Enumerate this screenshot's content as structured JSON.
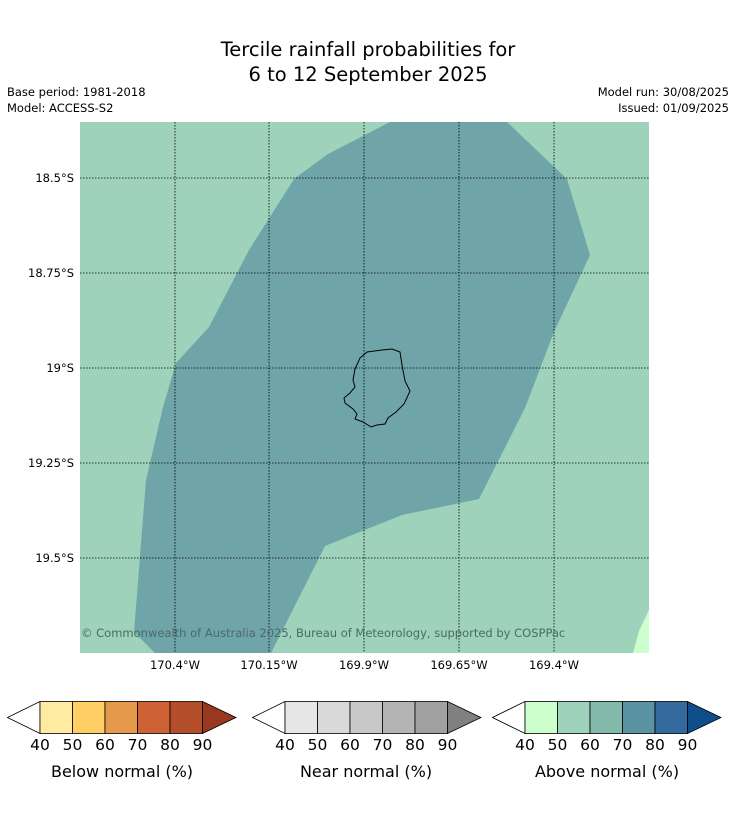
{
  "header": {
    "title_line1": "Tercile rainfall probabilities for",
    "title_line2": "6 to 12 September 2025",
    "base_period": "Base period: 1981-2018",
    "model": "Model: ACCESS-S2",
    "model_run": "Model run: 30/08/2025",
    "issued": "Issued: 01/09/2025"
  },
  "map": {
    "lat_labels": [
      "18.5°S",
      "18.75°S",
      "19°S",
      "19.25°S",
      "19.5°S"
    ],
    "lon_labels": [
      "170.4°W",
      "170.15°W",
      "169.9°W",
      "169.65°W",
      "169.4°W"
    ],
    "credit": "© Commonwealth of Australia 2025, Bureau of Meteorology, supported by COSPPac",
    "background_class": "Above normal 50-60%",
    "region_class": "Above normal 70-80%",
    "colors": {
      "background": "#9fd2bb",
      "region": "#6fa5a8",
      "corner": "#ccffcc",
      "grid": "#000000"
    }
  },
  "legend": {
    "ticks": [
      "40",
      "50",
      "60",
      "70",
      "80",
      "90"
    ],
    "below": {
      "label": "Below normal (%)",
      "colors": [
        "#ffffff",
        "#ffeca0",
        "#ffcf66",
        "#e49a4a",
        "#cf6235",
        "#b44d29",
        "#993820"
      ]
    },
    "near": {
      "label": "Near normal (%)",
      "colors": [
        "#ffffff",
        "#e6e6e6",
        "#d9d9d9",
        "#c8c8c8",
        "#b4b4b4",
        "#a0a0a0",
        "#808080"
      ]
    },
    "above": {
      "label": "Above normal (%)",
      "colors": [
        "#ffffff",
        "#ccffcc",
        "#9fd2bb",
        "#82b9ab",
        "#5b93a3",
        "#33699d",
        "#104e8b"
      ]
    }
  }
}
